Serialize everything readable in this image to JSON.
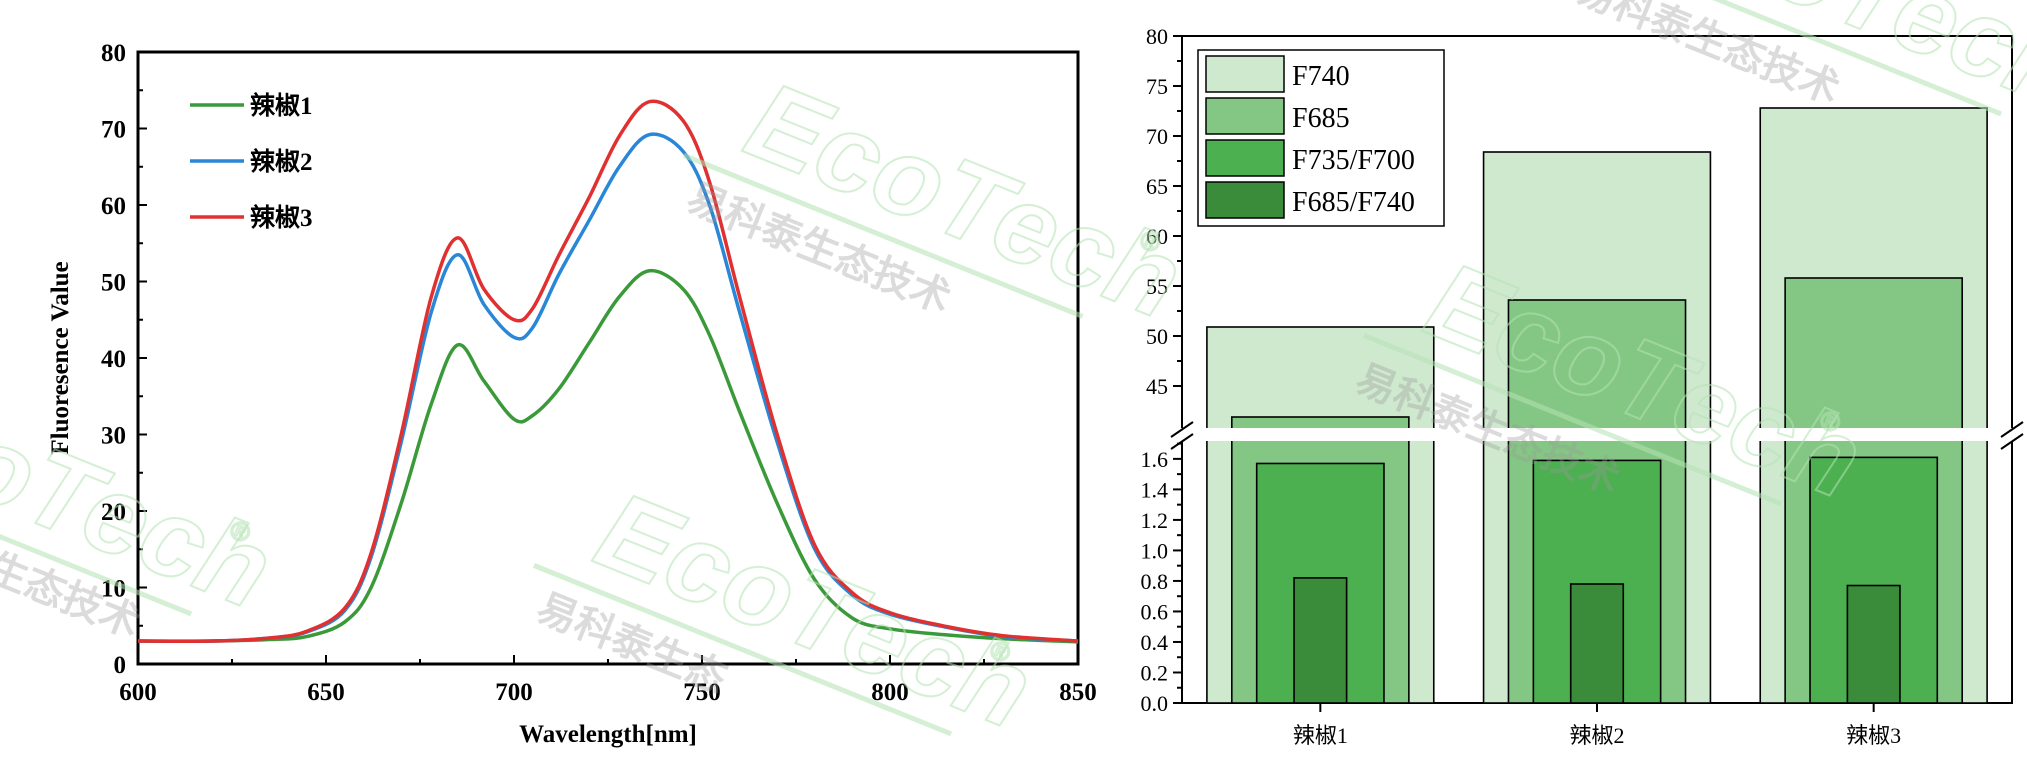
{
  "chart_data": [
    {
      "type": "line",
      "xlabel": "Wavelength[nm]",
      "ylabel": "Fluoresence Value",
      "xlim": [
        600,
        850
      ],
      "ylim": [
        0,
        80
      ],
      "x_ticks": [
        "600",
        "650",
        "700",
        "750",
        "800",
        "850"
      ],
      "y_ticks": [
        "0",
        "10",
        "20",
        "30",
        "40",
        "50",
        "60",
        "70",
        "80"
      ],
      "legend_position": "top-left",
      "x": [
        600,
        620,
        635,
        645,
        655,
        662,
        670,
        678,
        685,
        692,
        700,
        705,
        712,
        720,
        728,
        736,
        745,
        752,
        760,
        770,
        780,
        790,
        800,
        815,
        830,
        850
      ],
      "series": [
        {
          "name": "辣椒1",
          "color": "#3a9a3a",
          "values": [
            3,
            3,
            3.2,
            3.6,
            5.5,
            10,
            21,
            34,
            41.7,
            37,
            32,
            32.5,
            36,
            42,
            48,
            51.4,
            49,
            43,
            33,
            21,
            11,
            6,
            4.6,
            3.8,
            3.3,
            2.9
          ]
        },
        {
          "name": "辣椒2",
          "color": "#2a86d6",
          "values": [
            3,
            3,
            3.4,
            4.2,
            7,
            14,
            29,
            46,
            53.5,
            47,
            42.7,
            44,
            51,
            58,
            65,
            69.2,
            67,
            60,
            46,
            29,
            15,
            9,
            6.5,
            4.8,
            3.6,
            3
          ]
        },
        {
          "name": "辣椒3",
          "color": "#e03030",
          "values": [
            3,
            3,
            3.4,
            4.3,
            7.3,
            14.5,
            30,
            48,
            55.7,
            49,
            45,
            46.5,
            53.5,
            61,
            69,
            73.5,
            71,
            63,
            48,
            30,
            15.5,
            9.3,
            6.7,
            4.9,
            3.7,
            3
          ]
        }
      ]
    },
    {
      "type": "bar",
      "categories": [
        "辣椒1",
        "辣椒2",
        "辣椒3"
      ],
      "axis_break": true,
      "y_upper_range": [
        40,
        80
      ],
      "y_upper_ticks": [
        "45",
        "50",
        "55",
        "60",
        "65",
        "70",
        "75",
        "80"
      ],
      "y_lower_range": [
        0,
        1.75
      ],
      "y_lower_ticks": [
        "0.0",
        "0.2",
        "0.4",
        "0.6",
        "0.8",
        "1.0",
        "1.2",
        "1.4",
        "1.6"
      ],
      "legend_position": "top-left",
      "series": [
        {
          "name": "F740",
          "color": "#cfe9cf",
          "values": [
            50.9,
            68.4,
            72.8
          ],
          "axis": "upper"
        },
        {
          "name": "F685",
          "color": "#84c784",
          "values": [
            41.9,
            53.6,
            55.8
          ],
          "axis": "upper"
        },
        {
          "name": "F735/F700",
          "color": "#4caf50",
          "values": [
            1.57,
            1.59,
            1.61
          ],
          "axis": "lower"
        },
        {
          "name": "F685/F740",
          "color": "#3a8c3a",
          "values": [
            0.82,
            0.78,
            0.77
          ],
          "axis": "lower"
        }
      ]
    }
  ],
  "watermark": {
    "brand": "EcoTech",
    "registered": "®",
    "company": "易科泰生态技术",
    "company_partial": "生态技术",
    "company_clipped": "易科泰生态",
    "color": "#b4e3b4"
  }
}
